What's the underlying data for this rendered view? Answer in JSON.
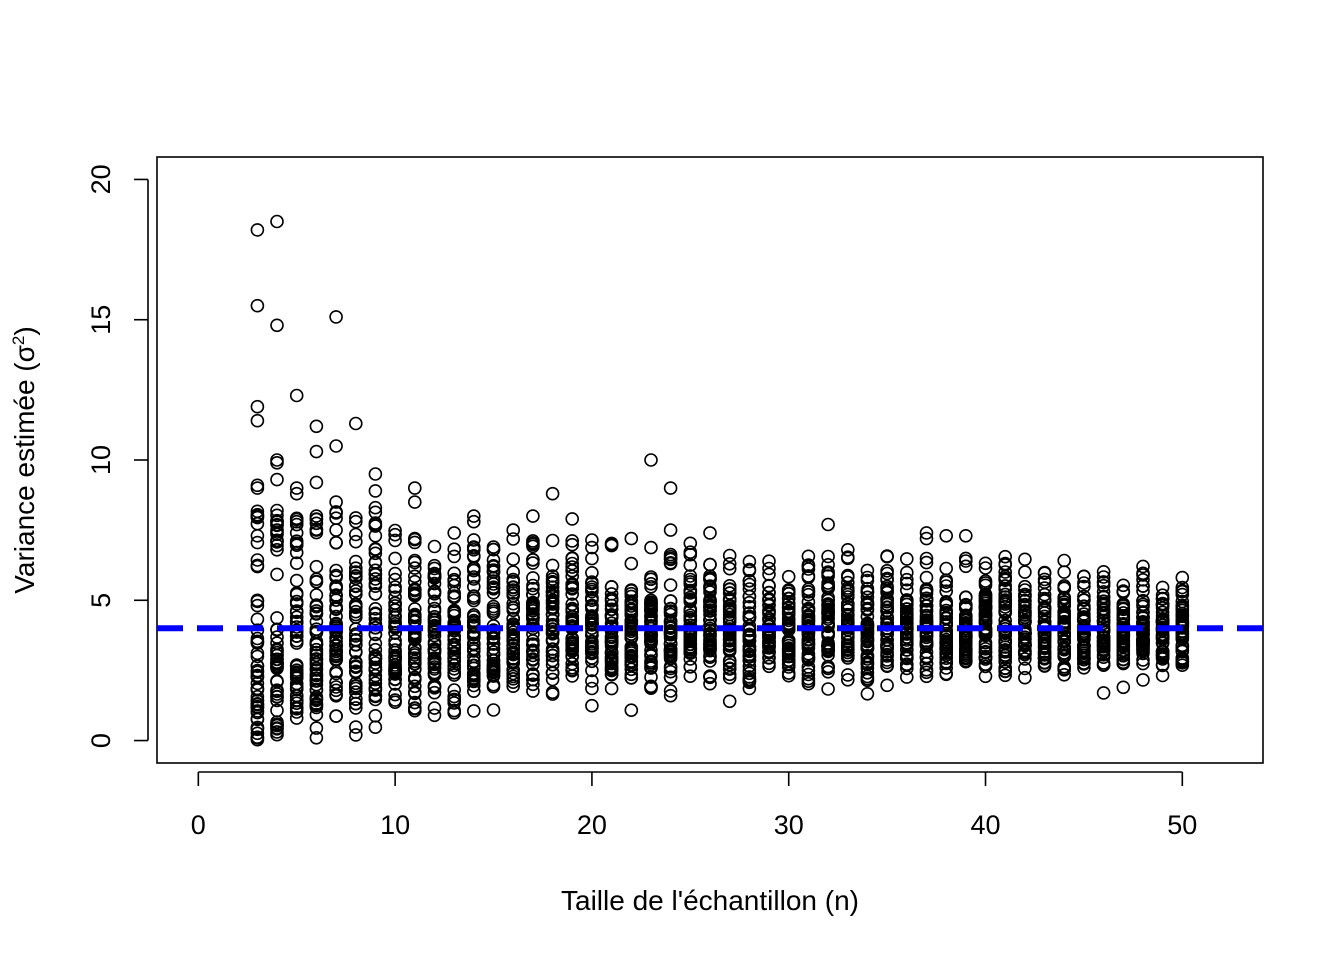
{
  "chart_data": {
    "type": "scatter",
    "title": "",
    "xlabel": "Taille de l'échantillon (n)",
    "ylabel_main": "Variance estimée (",
    "ylabel_sigma": "σ",
    "ylabel_sup": "2",
    "ylabel_close": ")",
    "xlim": [
      -2.1,
      54.1
    ],
    "ylim": [
      -0.8,
      20.8
    ],
    "x_ticks": [
      0,
      10,
      20,
      30,
      40,
      50
    ],
    "y_ticks": [
      0,
      5,
      10,
      15,
      20
    ],
    "grid": false,
    "legend": "none",
    "reference_line": {
      "y": 4,
      "color": "#0000ff",
      "style": "dashed"
    },
    "point_color": "#000000",
    "points_per_n": 50,
    "marker": "open-circle",
    "extreme_points": [
      [
        3,
        18.2
      ],
      [
        3,
        15.5
      ],
      [
        3,
        11.9
      ],
      [
        3,
        11.4
      ],
      [
        3,
        9.1
      ],
      [
        3,
        9.0
      ],
      [
        3,
        7.3
      ],
      [
        3,
        6.2
      ],
      [
        3,
        5.0
      ],
      [
        4,
        18.5
      ],
      [
        4,
        14.8
      ],
      [
        4,
        10.0
      ],
      [
        4,
        9.9
      ],
      [
        4,
        9.3
      ],
      [
        4,
        8.2
      ],
      [
        4,
        7.5
      ],
      [
        4,
        6.8
      ],
      [
        5,
        12.3
      ],
      [
        5,
        9.0
      ],
      [
        5,
        8.8
      ],
      [
        5,
        7.8
      ],
      [
        5,
        7.4
      ],
      [
        6,
        11.2
      ],
      [
        6,
        10.3
      ],
      [
        6,
        9.2
      ],
      [
        6,
        8.0
      ],
      [
        6,
        0.1
      ],
      [
        7,
        15.1
      ],
      [
        7,
        10.5
      ],
      [
        7,
        8.5
      ],
      [
        7,
        7.5
      ],
      [
        8,
        11.3
      ],
      [
        8,
        7.8
      ],
      [
        8,
        0.2
      ],
      [
        9,
        9.5
      ],
      [
        9,
        8.9
      ],
      [
        9,
        8.3
      ],
      [
        9,
        7.3
      ],
      [
        11,
        9.0
      ],
      [
        11,
        8.5
      ],
      [
        11,
        7.2
      ],
      [
        12,
        0.9
      ],
      [
        13,
        7.4
      ],
      [
        14,
        8.0
      ],
      [
        14,
        7.8
      ],
      [
        16,
        7.5
      ],
      [
        17,
        8.0
      ],
      [
        18,
        8.8
      ],
      [
        19,
        7.9
      ],
      [
        21,
        7.0
      ],
      [
        22,
        7.2
      ],
      [
        23,
        10.0
      ],
      [
        24,
        9.0
      ],
      [
        24,
        7.5
      ],
      [
        24,
        1.6
      ],
      [
        26,
        7.4
      ],
      [
        27,
        1.4
      ],
      [
        32,
        7.7
      ],
      [
        33,
        6.8
      ],
      [
        37,
        7.4
      ],
      [
        37,
        7.2
      ],
      [
        38,
        7.3
      ],
      [
        39,
        7.3
      ],
      [
        46,
        1.7
      ],
      [
        47,
        1.9
      ]
    ]
  }
}
